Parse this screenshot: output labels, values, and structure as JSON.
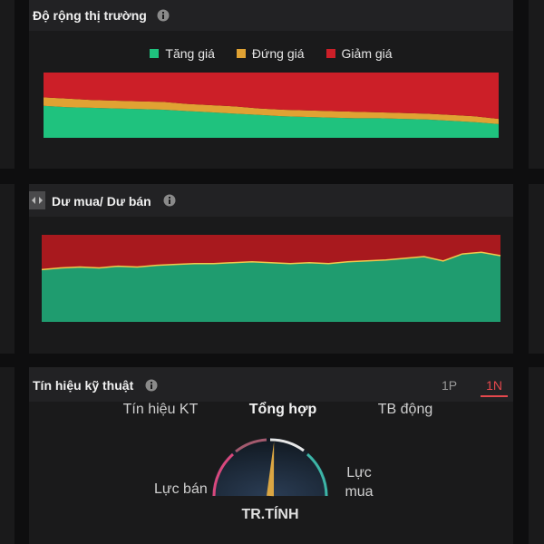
{
  "chart_data": [
    {
      "type": "area",
      "title": "Độ rộng thị trường",
      "stacked": true,
      "ylim": [
        0,
        100
      ],
      "series": [
        {
          "name": "Tăng giá",
          "color": "#1fc27e",
          "values": [
            49,
            47,
            46,
            45,
            44,
            43,
            41,
            39,
            37,
            35,
            33,
            32,
            31,
            30,
            30,
            29,
            28,
            26,
            24,
            21
          ]
        },
        {
          "name": "Đứng giá",
          "color": "#e0a233",
          "values": [
            13,
            13,
            12,
            12,
            12,
            12,
            11,
            11,
            11,
            10,
            10,
            10,
            10,
            10,
            9,
            9,
            9,
            9,
            9,
            8
          ]
        },
        {
          "name": "Giảm giá",
          "color": "#cc1f28",
          "values": [
            38,
            40,
            42,
            43,
            44,
            45,
            48,
            50,
            52,
            55,
            57,
            58,
            59,
            60,
            61,
            62,
            63,
            65,
            67,
            71
          ]
        }
      ]
    },
    {
      "type": "area",
      "title": "Dư mua/ Dư bán",
      "stacked": true,
      "ylim": [
        0,
        100
      ],
      "boundary_color": "#f2c94c",
      "series": [
        {
          "color": "#1f9c6f",
          "values": [
            60,
            62,
            63,
            62,
            64,
            63,
            65,
            66,
            67,
            67,
            68,
            69,
            68,
            67,
            68,
            67,
            69,
            70,
            71,
            73,
            75,
            70,
            78,
            80,
            76
          ]
        },
        {
          "color": "#a8191e",
          "values": [
            40,
            38,
            37,
            38,
            36,
            37,
            35,
            34,
            33,
            33,
            32,
            31,
            32,
            33,
            32,
            33,
            31,
            30,
            29,
            27,
            25,
            30,
            22,
            20,
            24
          ]
        }
      ]
    }
  ],
  "signals": {
    "title": "Tín hiệu kỹ thuật",
    "periods": [
      "1P",
      "1N"
    ],
    "active_period": 1,
    "tabs": [
      "Tín hiệu KT",
      "Tổng hợp",
      "TB động"
    ],
    "active_tab": 1,
    "left_label": "Lực bán",
    "right_label": "Lực mua",
    "status": "TR.TÍNH"
  }
}
